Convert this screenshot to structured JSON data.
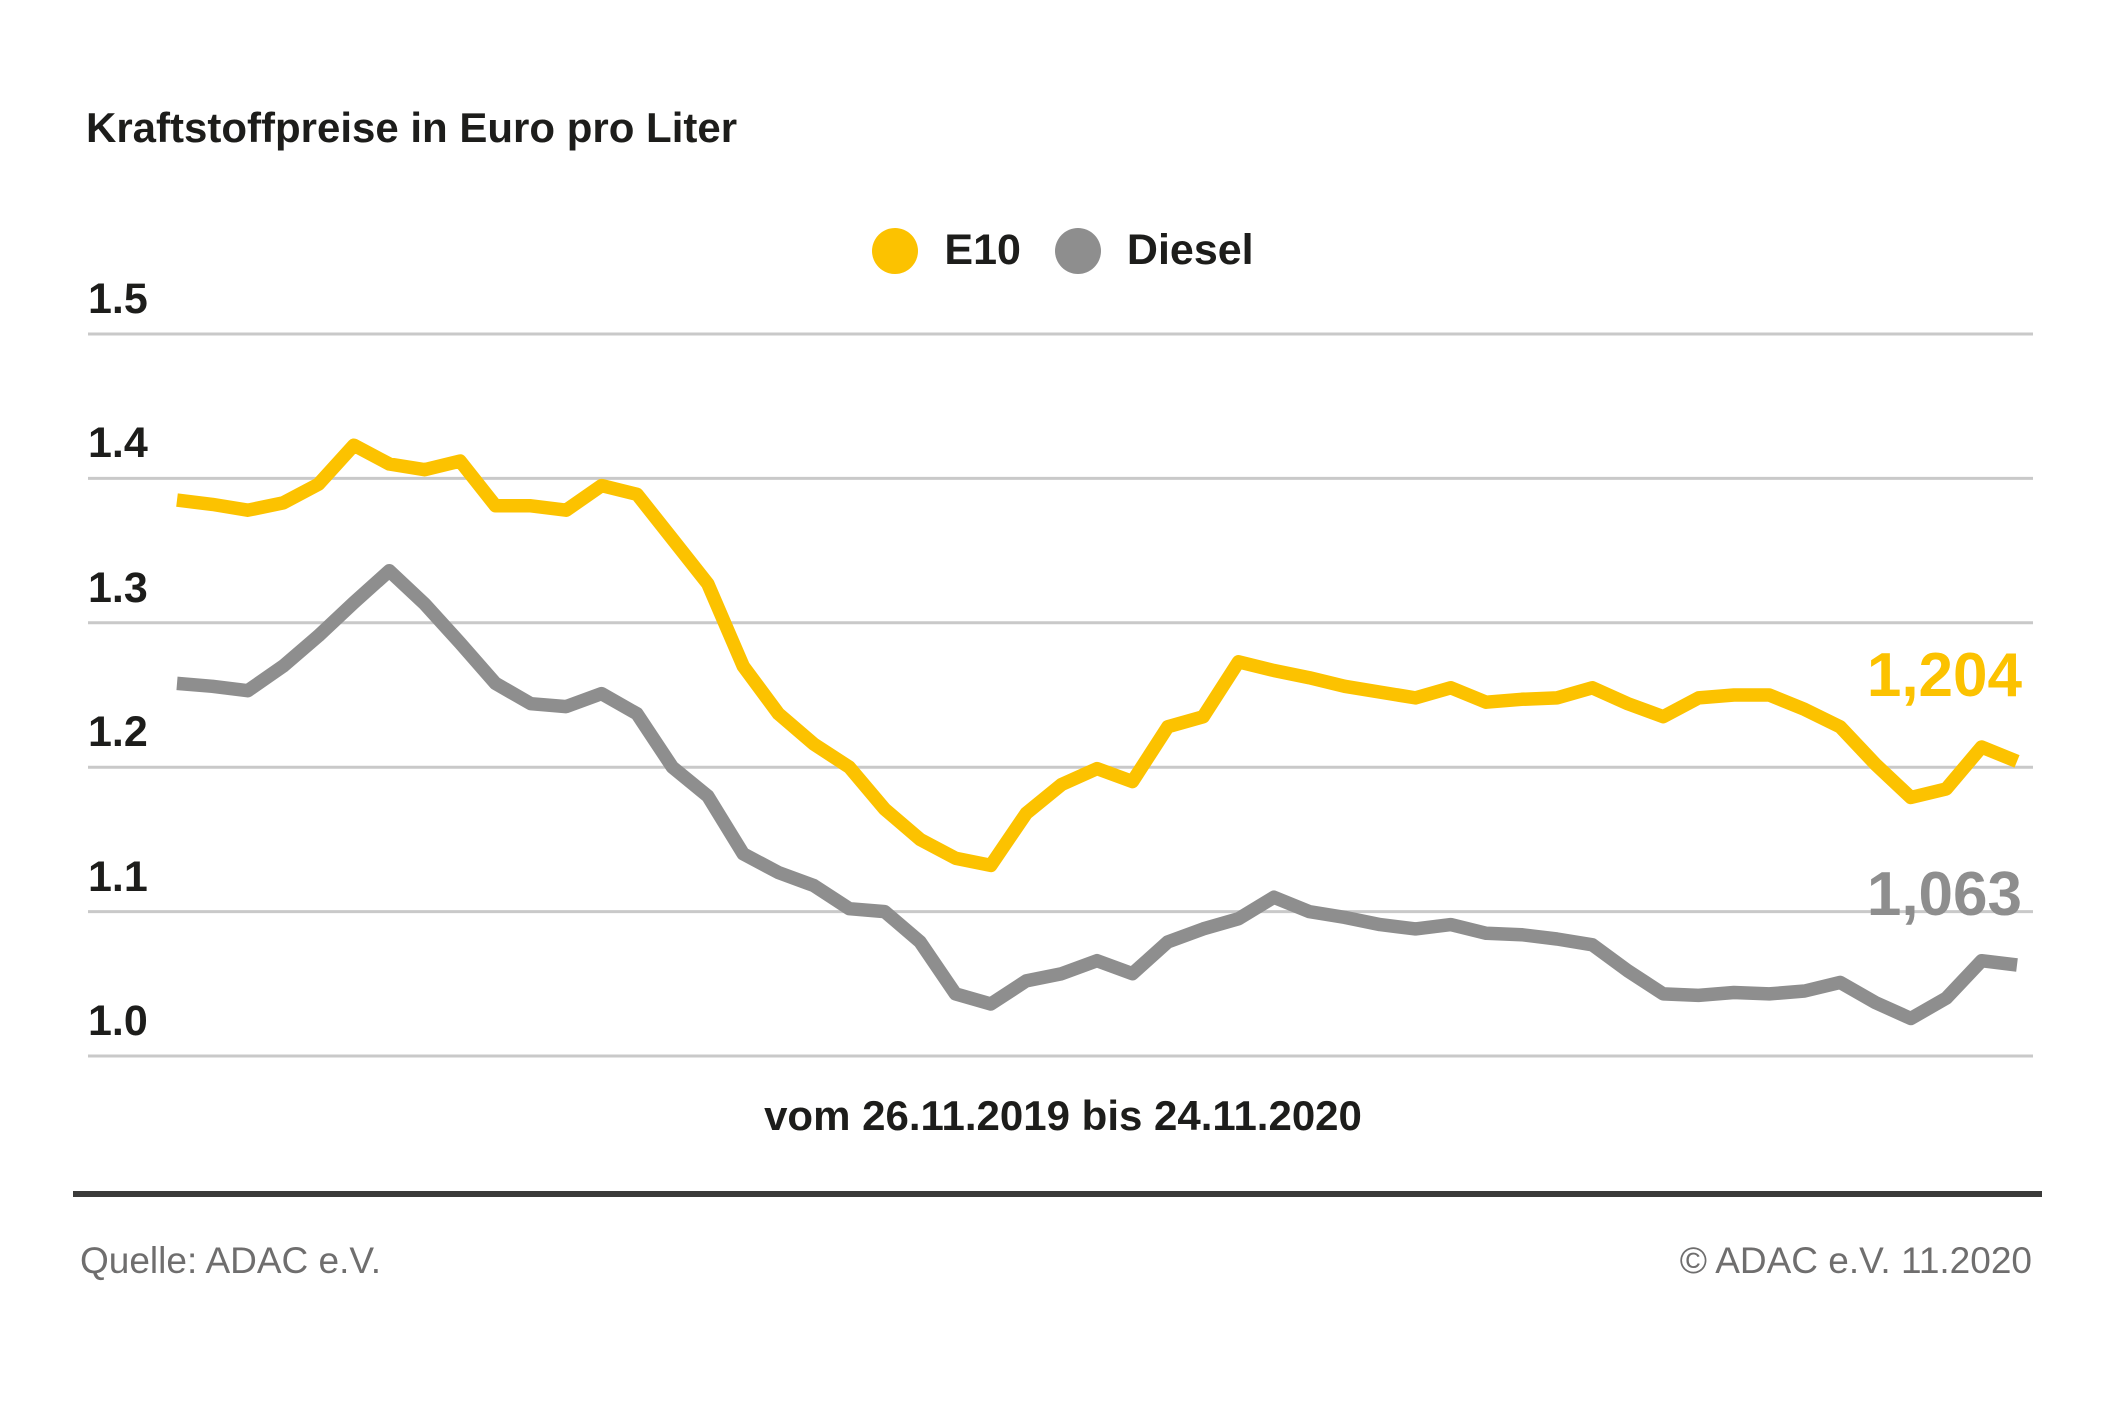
{
  "title": "Kraftstoffpreise in Euro pro Liter",
  "colors": {
    "e10": "#fcc200",
    "diesel": "#8e8e8e",
    "text_dark": "#1d1d1b",
    "gridline": "#c9c9c9",
    "footer_rule": "#3b3b3a",
    "footer_text": "#6f6e6e"
  },
  "chart_data": {
    "type": "line",
    "title": "Kraftstoffpreise in Euro pro Liter",
    "xlabel": "vom 26.11.2019 bis 24.11.2020",
    "x_start": "26.11.2019",
    "x_end": "24.11.2020",
    "x_interval": "weekly",
    "ylabel": "Euro pro Liter",
    "ylim": [
      0.97,
      1.53
    ],
    "grid": true,
    "legend_position": "top-center",
    "y_axis_ticks": [
      {
        "label": "1.5",
        "value": 1.5
      },
      {
        "label": "1.4",
        "value": 1.4
      },
      {
        "label": "1.3",
        "value": 1.3
      },
      {
        "label": "1.2",
        "value": 1.2
      },
      {
        "label": "1.1",
        "value": 1.1
      },
      {
        "label": "1.0",
        "value": 1.0
      }
    ],
    "series": [
      {
        "name": "E10",
        "color": "#fcc200",
        "end_label": "1,204",
        "end_value": 1.204,
        "values": [
          1.385,
          1.382,
          1.378,
          1.383,
          1.396,
          1.423,
          1.41,
          1.406,
          1.412,
          1.381,
          1.381,
          1.378,
          1.395,
          1.389,
          1.358,
          1.327,
          1.27,
          1.237,
          1.216,
          1.2,
          1.171,
          1.15,
          1.137,
          1.132,
          1.168,
          1.188,
          1.199,
          1.19,
          1.228,
          1.235,
          1.273,
          1.267,
          1.262,
          1.256,
          1.252,
          1.248,
          1.255,
          1.245,
          1.247,
          1.248,
          1.255,
          1.244,
          1.235,
          1.248,
          1.25,
          1.25,
          1.24,
          1.228,
          1.202,
          1.179,
          1.185,
          1.214,
          1.204
        ]
      },
      {
        "name": "Diesel",
        "color": "#8e8e8e",
        "end_label": "1,063",
        "end_value": 1.063,
        "values": [
          1.258,
          1.256,
          1.253,
          1.27,
          1.291,
          1.314,
          1.336,
          1.313,
          1.286,
          1.258,
          1.244,
          1.242,
          1.251,
          1.237,
          1.2,
          1.18,
          1.14,
          1.127,
          1.118,
          1.102,
          1.1,
          1.079,
          1.043,
          1.036,
          1.052,
          1.057,
          1.066,
          1.057,
          1.079,
          1.088,
          1.095,
          1.11,
          1.1,
          1.096,
          1.091,
          1.088,
          1.091,
          1.085,
          1.084,
          1.081,
          1.077,
          1.059,
          1.043,
          1.042,
          1.044,
          1.043,
          1.045,
          1.051,
          1.037,
          1.026,
          1.04,
          1.066,
          1.063
        ]
      }
    ]
  },
  "legend": {
    "items": [
      {
        "label": "E10"
      },
      {
        "label": "Diesel"
      }
    ]
  },
  "footer": {
    "source": "Quelle: ADAC e.V.",
    "copyright": "© ADAC e.V. 11.2020"
  }
}
